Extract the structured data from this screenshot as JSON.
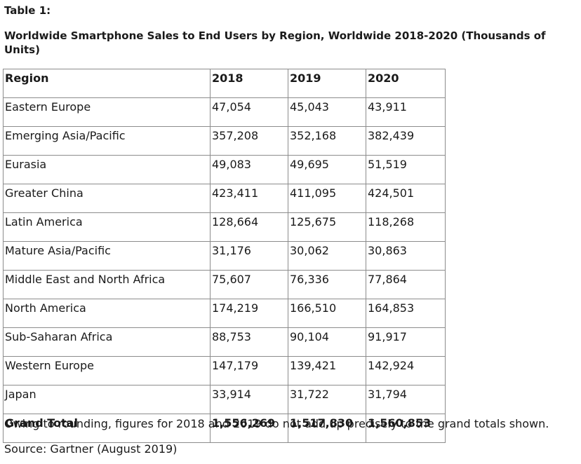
{
  "document": {
    "label": "Table 1:",
    "title": "Worldwide Smartphone Sales to End Users by Region, Worldwide 2018-2020 (Thousands of Units)",
    "headers": [
      "Region",
      "2018",
      "2019",
      "2020"
    ],
    "rows": [
      [
        "Eastern Europe",
        "47,054",
        "45,043",
        "43,911"
      ],
      [
        "Emerging Asia/Pacific",
        "357,208",
        "352,168",
        "382,439"
      ],
      [
        "Eurasia",
        "49,083",
        "49,695",
        "51,519"
      ],
      [
        "Greater China",
        "423,411",
        "411,095",
        "424,501"
      ],
      [
        "Latin America",
        "128,664",
        "125,675",
        "118,268"
      ],
      [
        "Mature Asia/Pacific",
        "31,176",
        "30,062",
        "30,863"
      ],
      [
        "Middle East and North Africa",
        "75,607",
        "76,336",
        "77,864"
      ],
      [
        "North America",
        "174,219",
        "166,510",
        "164,853"
      ],
      [
        "Sub-Saharan Africa",
        "88,753",
        "90,104",
        "91,917"
      ],
      [
        "Western Europe",
        "147,179",
        "139,421",
        "142,924"
      ],
      [
        "Japan",
        "33,914",
        "31,722",
        "31,794"
      ]
    ],
    "total": [
      "Grand Total",
      "1,556,269",
      "1,517,830",
      "1,560,853"
    ],
    "footnote": "Owing to rounding, figures for 2018 and 2019 do not add up precisely to the grand totals shown.",
    "source": "Source: Gartner (August 2019)"
  }
}
